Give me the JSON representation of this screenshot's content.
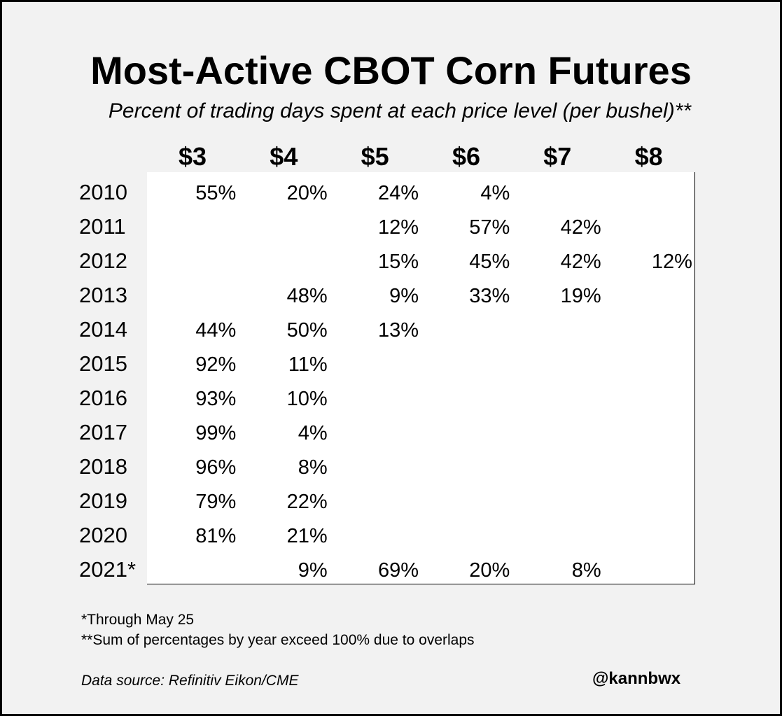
{
  "chart_data": {
    "type": "table",
    "title": "Most-Active CBOT Corn Futures",
    "subtitle": "Percent of trading days spent at each price level (per bushel)**",
    "columns": [
      "$3",
      "$4",
      "$5",
      "$6",
      "$7",
      "$8"
    ],
    "rows": [
      {
        "year": "2010",
        "values": [
          "55%",
          "20%",
          "24%",
          "4%",
          "",
          ""
        ]
      },
      {
        "year": "2011",
        "values": [
          "",
          "",
          "12%",
          "57%",
          "42%",
          ""
        ]
      },
      {
        "year": "2012",
        "values": [
          "",
          "",
          "15%",
          "45%",
          "42%",
          "12%"
        ]
      },
      {
        "year": "2013",
        "values": [
          "",
          "48%",
          "9%",
          "33%",
          "19%",
          ""
        ]
      },
      {
        "year": "2014",
        "values": [
          "44%",
          "50%",
          "13%",
          "",
          "",
          ""
        ]
      },
      {
        "year": "2015",
        "values": [
          "92%",
          "11%",
          "",
          "",
          "",
          ""
        ]
      },
      {
        "year": "2016",
        "values": [
          "93%",
          "10%",
          "",
          "",
          "",
          ""
        ]
      },
      {
        "year": "2017",
        "values": [
          "99%",
          "4%",
          "",
          "",
          "",
          ""
        ]
      },
      {
        "year": "2018",
        "values": [
          "96%",
          "8%",
          "",
          "",
          "",
          ""
        ]
      },
      {
        "year": "2019",
        "values": [
          "79%",
          "22%",
          "",
          "",
          "",
          ""
        ]
      },
      {
        "year": "2020",
        "values": [
          "81%",
          "21%",
          "",
          "",
          "",
          ""
        ]
      },
      {
        "year": "2021*",
        "values": [
          "",
          "9%",
          "69%",
          "20%",
          "8%",
          ""
        ]
      }
    ]
  },
  "footnotes": [
    "*Through May 25",
    "**Sum of percentages by year exceed 100% due to overlaps"
  ],
  "source": "Data source: Refinitiv Eikon/CME",
  "handle": "@kannbwx",
  "colors": {
    "background": "#f2f2f2",
    "table": "#ffffff",
    "text": "#000000"
  }
}
